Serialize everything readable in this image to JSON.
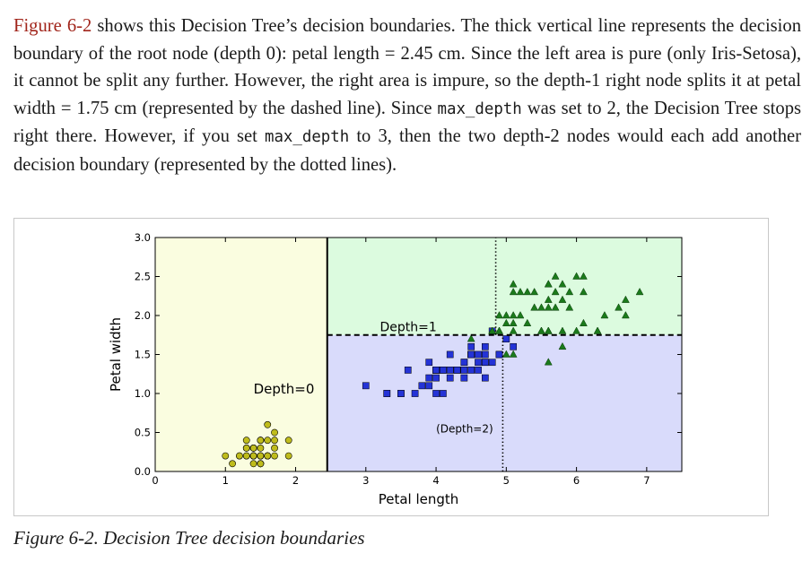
{
  "paragraph": {
    "ref": "Figure 6-2",
    "seg1": " shows this Decision Tree’s decision boundaries. The thick vertical line represents the decision boundary of the root node (depth 0): petal length = 2.45 cm. Since the left area is pure (only Iris-Setosa), it cannot be split any further. However, the right area is impure, so the depth-1 right node splits it at petal width = 1.75 cm (represented by the dashed line). Since ",
    "code1": "max_depth",
    "seg2": " was set to 2, the Decision Tree stops right there. However, if you set ",
    "code2": "max_depth",
    "seg3": " to 3, then the two depth-2 nodes would each add another decision boundary (represented by the dotted lines)."
  },
  "caption": "Figure 6-2. Decision Tree decision boundaries",
  "chart_data": {
    "type": "scatter",
    "xlabel": "Petal length",
    "ylabel": "Petal width",
    "xlim": [
      0,
      7.5
    ],
    "ylim": [
      0,
      3
    ],
    "xticks": [
      "0",
      "1",
      "2",
      "3",
      "4",
      "5",
      "6",
      "7"
    ],
    "yticks": [
      "0.0",
      "0.5",
      "1.0",
      "1.5",
      "2.0",
      "2.5",
      "3.0"
    ],
    "grid": false,
    "regions": [
      {
        "x0": 0,
        "x1": 2.45,
        "y0": 0,
        "y1": 3,
        "color": "#fafde0"
      },
      {
        "x0": 2.45,
        "x1": 7.5,
        "y0": 0,
        "y1": 1.75,
        "color": "#d9dbfb"
      },
      {
        "x0": 2.45,
        "x1": 7.5,
        "y0": 1.75,
        "y1": 3,
        "color": "#dcfbdf"
      }
    ],
    "boundaries": [
      {
        "style": "solid",
        "x0": 2.45,
        "y0": 0,
        "x1": 2.45,
        "y1": 3
      },
      {
        "style": "dashed",
        "x0": 2.45,
        "y0": 1.75,
        "x1": 7.5,
        "y1": 1.75
      },
      {
        "style": "dotted",
        "x0": 4.95,
        "y0": 0,
        "x1": 4.95,
        "y1": 1.75
      },
      {
        "style": "dotted",
        "x0": 4.85,
        "y0": 1.75,
        "x1": 4.85,
        "y1": 3
      }
    ],
    "annotations": [
      {
        "text": "Depth=0",
        "x": 1.4,
        "y": 1.0,
        "size": 15
      },
      {
        "text": "Depth=1",
        "x": 3.2,
        "y": 1.8,
        "size": 14
      },
      {
        "text": "(Depth=2)",
        "x": 4.0,
        "y": 0.5,
        "size": 12
      }
    ],
    "series": [
      {
        "marker": "circle",
        "color": "#bfbc1c",
        "points": [
          [
            1.4,
            0.2
          ],
          [
            1.4,
            0.2
          ],
          [
            1.3,
            0.2
          ],
          [
            1.5,
            0.2
          ],
          [
            1.4,
            0.2
          ],
          [
            1.7,
            0.4
          ],
          [
            1.4,
            0.3
          ],
          [
            1.5,
            0.2
          ],
          [
            1.4,
            0.2
          ],
          [
            1.5,
            0.1
          ],
          [
            1.5,
            0.2
          ],
          [
            1.6,
            0.2
          ],
          [
            1.4,
            0.1
          ],
          [
            1.1,
            0.1
          ],
          [
            1.2,
            0.2
          ],
          [
            1.5,
            0.4
          ],
          [
            1.3,
            0.4
          ],
          [
            1.4,
            0.3
          ],
          [
            1.7,
            0.3
          ],
          [
            1.5,
            0.3
          ],
          [
            1.7,
            0.2
          ],
          [
            1.5,
            0.4
          ],
          [
            1.0,
            0.2
          ],
          [
            1.7,
            0.5
          ],
          [
            1.9,
            0.2
          ],
          [
            1.6,
            0.2
          ],
          [
            1.6,
            0.4
          ],
          [
            1.5,
            0.2
          ],
          [
            1.4,
            0.2
          ],
          [
            1.6,
            0.2
          ],
          [
            1.6,
            0.2
          ],
          [
            1.5,
            0.4
          ],
          [
            1.5,
            0.1
          ],
          [
            1.4,
            0.2
          ],
          [
            1.5,
            0.1
          ],
          [
            1.2,
            0.2
          ],
          [
            1.3,
            0.2
          ],
          [
            1.3,
            0.3
          ],
          [
            1.3,
            0.3
          ],
          [
            1.6,
            0.6
          ],
          [
            1.9,
            0.4
          ],
          [
            1.4,
            0.3
          ],
          [
            1.6,
            0.2
          ],
          [
            1.4,
            0.2
          ],
          [
            1.5,
            0.2
          ],
          [
            1.4,
            0.2
          ]
        ]
      },
      {
        "marker": "square",
        "color": "#2433d6",
        "points": [
          [
            4.7,
            1.4
          ],
          [
            4.5,
            1.5
          ],
          [
            4.9,
            1.5
          ],
          [
            4.0,
            1.3
          ],
          [
            4.6,
            1.5
          ],
          [
            4.5,
            1.3
          ],
          [
            4.7,
            1.6
          ],
          [
            3.3,
            1.0
          ],
          [
            4.6,
            1.3
          ],
          [
            3.9,
            1.4
          ],
          [
            3.5,
            1.0
          ],
          [
            4.2,
            1.5
          ],
          [
            4.0,
            1.0
          ],
          [
            4.7,
            1.4
          ],
          [
            3.6,
            1.3
          ],
          [
            4.4,
            1.4
          ],
          [
            4.5,
            1.5
          ],
          [
            4.1,
            1.0
          ],
          [
            4.5,
            1.5
          ],
          [
            3.9,
            1.1
          ],
          [
            4.8,
            1.8
          ],
          [
            4.0,
            1.3
          ],
          [
            4.9,
            1.5
          ],
          [
            4.7,
            1.2
          ],
          [
            4.3,
            1.3
          ],
          [
            4.4,
            1.4
          ],
          [
            4.8,
            1.4
          ],
          [
            5.0,
            1.7
          ],
          [
            4.5,
            1.5
          ],
          [
            3.5,
            1.0
          ],
          [
            3.8,
            1.1
          ],
          [
            3.7,
            1.0
          ],
          [
            3.9,
            1.2
          ],
          [
            5.1,
            1.6
          ],
          [
            4.5,
            1.5
          ],
          [
            4.5,
            1.6
          ],
          [
            4.7,
            1.5
          ],
          [
            4.4,
            1.3
          ],
          [
            4.1,
            1.3
          ],
          [
            4.0,
            1.3
          ],
          [
            4.4,
            1.2
          ],
          [
            4.6,
            1.4
          ],
          [
            4.0,
            1.2
          ],
          [
            3.3,
            1.0
          ],
          [
            4.2,
            1.3
          ],
          [
            4.2,
            1.2
          ],
          [
            4.3,
            1.3
          ],
          [
            3.0,
            1.1
          ],
          [
            4.1,
            1.3
          ]
        ]
      },
      {
        "marker": "triangle",
        "color": "#1b7a1b",
        "points": [
          [
            6.0,
            2.5
          ],
          [
            5.1,
            1.9
          ],
          [
            5.9,
            2.1
          ],
          [
            5.6,
            1.8
          ],
          [
            5.8,
            2.2
          ],
          [
            6.6,
            2.1
          ],
          [
            4.5,
            1.7
          ],
          [
            6.3,
            1.8
          ],
          [
            5.8,
            1.8
          ],
          [
            6.1,
            2.5
          ],
          [
            5.1,
            2.0
          ],
          [
            5.3,
            1.9
          ],
          [
            5.5,
            2.1
          ],
          [
            5.0,
            2.0
          ],
          [
            5.1,
            2.4
          ],
          [
            5.3,
            2.3
          ],
          [
            5.5,
            1.8
          ],
          [
            6.7,
            2.2
          ],
          [
            6.9,
            2.3
          ],
          [
            5.0,
            1.5
          ],
          [
            5.7,
            2.3
          ],
          [
            4.9,
            2.0
          ],
          [
            6.7,
            2.0
          ],
          [
            4.9,
            1.8
          ],
          [
            5.7,
            2.1
          ],
          [
            6.0,
            1.8
          ],
          [
            4.8,
            1.8
          ],
          [
            4.9,
            1.8
          ],
          [
            5.6,
            2.1
          ],
          [
            5.8,
            1.6
          ],
          [
            6.1,
            1.9
          ],
          [
            6.4,
            2.0
          ],
          [
            5.6,
            2.2
          ],
          [
            5.1,
            1.5
          ],
          [
            5.6,
            1.4
          ],
          [
            6.1,
            2.3
          ],
          [
            5.6,
            2.4
          ],
          [
            5.5,
            1.8
          ],
          [
            4.8,
            1.8
          ],
          [
            5.4,
            2.1
          ],
          [
            5.6,
            2.4
          ],
          [
            5.1,
            2.3
          ],
          [
            5.9,
            2.3
          ],
          [
            5.7,
            2.5
          ],
          [
            5.2,
            2.3
          ],
          [
            5.0,
            1.9
          ],
          [
            5.2,
            2.0
          ],
          [
            5.4,
            2.3
          ],
          [
            5.1,
            1.8
          ],
          [
            5.8,
            2.4
          ],
          [
            6.3,
            1.8
          ],
          [
            5.6,
            1.8
          ]
        ]
      }
    ]
  }
}
